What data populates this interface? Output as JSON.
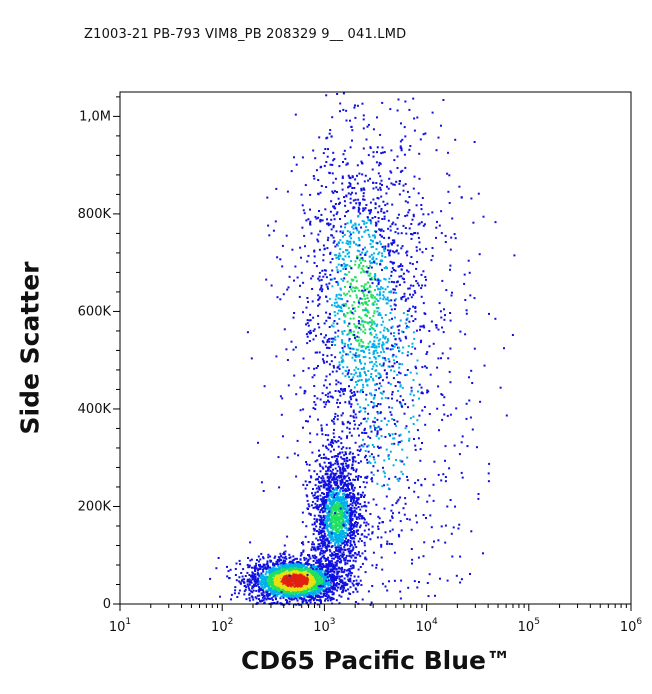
{
  "file_title": "Z1003-21 PB-793 VIM8_PB 208329 9__ 041.LMD",
  "colors": {
    "density_low": "#1010e0",
    "density_mid_low": "#00b0e8",
    "density_mid": "#20e060",
    "density_mid_high": "#e8e010",
    "density_high": "#e02010",
    "axis": "#000000"
  },
  "chart_data": {
    "type": "scatter",
    "title": "",
    "xlabel": "CD65 Pacific Blue™",
    "ylabel": "Side Scatter",
    "xscale": "log",
    "xlim": [
      10,
      1000000
    ],
    "ylim": [
      0,
      1050000
    ],
    "xticks": [
      {
        "value": 10,
        "base": "10",
        "exp": "1"
      },
      {
        "value": 100,
        "base": "10",
        "exp": "2"
      },
      {
        "value": 1000,
        "base": "10",
        "exp": "3"
      },
      {
        "value": 10000,
        "base": "10",
        "exp": "4"
      },
      {
        "value": 100000,
        "base": "10",
        "exp": "5"
      },
      {
        "value": 1000000,
        "base": "10",
        "exp": "6"
      }
    ],
    "yticks": [
      {
        "value": 0,
        "label": "0"
      },
      {
        "value": 200000,
        "label": "200K"
      },
      {
        "value": 400000,
        "label": "400K"
      },
      {
        "value": 600000,
        "label": "600K"
      },
      {
        "value": 800000,
        "label": "800K"
      },
      {
        "value": 1000000,
        "label": "1,0M"
      }
    ],
    "grid": false,
    "legend": "none",
    "populations": [
      {
        "x_center": 500,
        "y_center": 50000,
        "x_spread_decades": 0.22,
        "y_spread": 22000,
        "density": "high"
      },
      {
        "x_center": 1300,
        "y_center": 180000,
        "x_spread_decades": 0.12,
        "y_spread": 60000,
        "density": "medium"
      },
      {
        "x_center": 2200,
        "y_center": 620000,
        "x_spread_decades": 0.3,
        "y_spread": 180000,
        "density": "medium"
      },
      {
        "x_center": 4000,
        "y_center": 450000,
        "x_spread_decades": 0.45,
        "y_spread": 300000,
        "density": "low"
      }
    ]
  }
}
